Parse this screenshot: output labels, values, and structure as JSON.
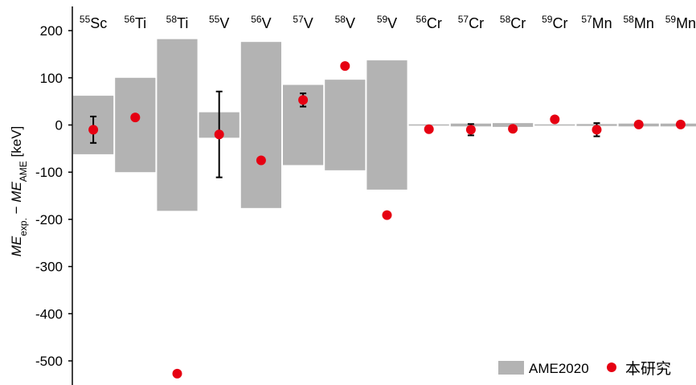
{
  "chart_data": {
    "type": "bar",
    "ylabel": {
      "base1": "ME",
      "sub1": "exp.",
      "sep": " − ",
      "base2": "ME",
      "sub2": "AME",
      "unit": " [keV]"
    },
    "ylim": [
      -550,
      220
    ],
    "yticks": [
      200,
      100,
      0,
      -100,
      -200,
      -300,
      -400,
      -500
    ],
    "categories": [
      {
        "mass": "55",
        "element": "Sc"
      },
      {
        "mass": "56",
        "element": "Ti"
      },
      {
        "mass": "58",
        "element": "Ti"
      },
      {
        "mass": "55",
        "element": "V"
      },
      {
        "mass": "56",
        "element": "V"
      },
      {
        "mass": "57",
        "element": "V"
      },
      {
        "mass": "58",
        "element": "V"
      },
      {
        "mass": "59",
        "element": "V"
      },
      {
        "mass": "56",
        "element": "Cr"
      },
      {
        "mass": "57",
        "element": "Cr"
      },
      {
        "mass": "58",
        "element": "Cr"
      },
      {
        "mass": "59",
        "element": "Cr"
      },
      {
        "mass": "57",
        "element": "Mn"
      },
      {
        "mass": "58",
        "element": "Mn"
      },
      {
        "mass": "59",
        "element": "Mn"
      }
    ],
    "series": [
      {
        "name": "AME2020",
        "kind": "uncertainty-band",
        "color": "#b3b3b3",
        "values": [
          62,
          100,
          182,
          27,
          176,
          85,
          96,
          137,
          1,
          3,
          4,
          1,
          2,
          3,
          3
        ]
      },
      {
        "name": "本研究",
        "kind": "points",
        "color": "#e60012",
        "values": [
          -10,
          16,
          -527,
          -20,
          -75,
          53,
          125,
          -191,
          -9,
          -10,
          -8,
          12,
          -10,
          1,
          1
        ],
        "errors": [
          28,
          null,
          null,
          91,
          null,
          14,
          null,
          null,
          null,
          12,
          null,
          null,
          14,
          null,
          null
        ]
      }
    ],
    "legend": {
      "position": "bottom-right",
      "items": [
        {
          "label": "AME2020",
          "symbol": "rect",
          "color": "#b3b3b3"
        },
        {
          "label": "本研究",
          "symbol": "dot",
          "color": "#e60012"
        }
      ]
    }
  }
}
